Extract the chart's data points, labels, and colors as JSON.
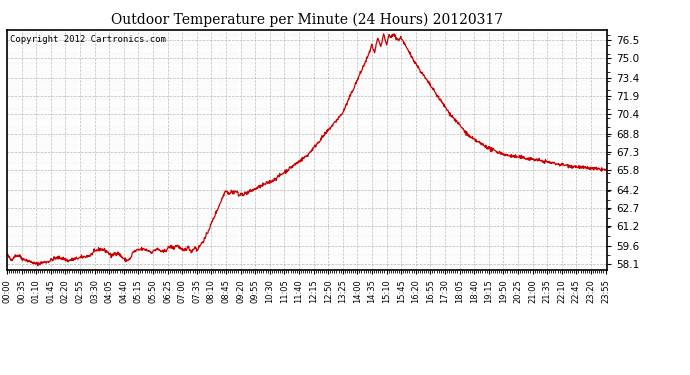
{
  "title": "Outdoor Temperature per Minute (24 Hours) 20120317",
  "copyright_text": "Copyright 2012 Cartronics.com",
  "line_color": "#cc0000",
  "background_color": "#ffffff",
  "plot_bg_color": "#ffffff",
  "grid_color": "#aaaaaa",
  "yticks": [
    58.1,
    59.6,
    61.2,
    62.7,
    64.2,
    65.8,
    67.3,
    68.8,
    70.4,
    71.9,
    73.4,
    75.0,
    76.5
  ],
  "ylim": [
    57.6,
    77.3
  ],
  "xtick_labels": [
    "00:00",
    "00:35",
    "01:10",
    "01:45",
    "02:20",
    "02:55",
    "03:30",
    "04:05",
    "04:40",
    "05:15",
    "05:50",
    "06:25",
    "07:00",
    "07:35",
    "08:10",
    "08:45",
    "09:20",
    "09:55",
    "10:30",
    "11:05",
    "11:40",
    "12:15",
    "12:50",
    "13:25",
    "14:00",
    "14:35",
    "15:10",
    "15:45",
    "16:20",
    "16:55",
    "17:30",
    "18:05",
    "18:40",
    "19:15",
    "19:50",
    "20:25",
    "21:00",
    "21:35",
    "22:10",
    "22:45",
    "23:20",
    "23:55"
  ]
}
